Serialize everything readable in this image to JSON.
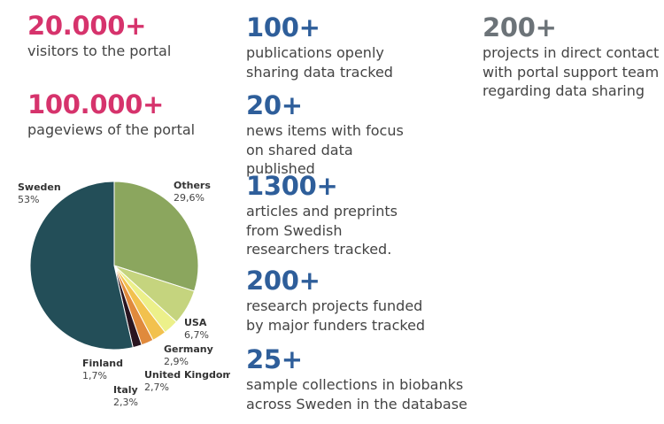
{
  "stats": {
    "visitors": {
      "number": "20.000+",
      "text": "visitors to the portal",
      "color": "#d6336c"
    },
    "pageviews": {
      "number": "100.000+",
      "text": "pageviews of the portal",
      "color": "#d6336c"
    },
    "publications": {
      "number": "100+",
      "text": "publications openly sharing data tracked",
      "color": "#2e5e9a"
    },
    "news": {
      "number": "20+",
      "text": "news items with focus on shared data published",
      "color": "#2e5e9a"
    },
    "articles": {
      "number": "1300+",
      "text": "articles and preprints from Swedish researchers tracked.",
      "color": "#2e5e9a"
    },
    "projects_funded": {
      "number": "200+",
      "text": "research projects funded by major funders tracked",
      "color": "#2e5e9a"
    },
    "collections": {
      "number": "25+",
      "text": "sample collections in biobanks across Sweden in the database",
      "color": "#2e5e9a"
    },
    "projects_contact": {
      "number": "200+",
      "text": "projects in direct contact with portal support team regarding data sharing",
      "color": "#6c7378"
    }
  },
  "chart_data": {
    "type": "pie",
    "slices": [
      {
        "name": "Sweden",
        "label": "53%",
        "value": 53.0,
        "color": "#234e58"
      },
      {
        "name": "Others",
        "label": "29,6%",
        "value": 29.6,
        "color": "#8ba65e"
      },
      {
        "name": "USA",
        "label": "6,7%",
        "value": 6.7,
        "color": "#c5d47e"
      },
      {
        "name": "Germany",
        "label": "2,9%",
        "value": 2.9,
        "color": "#ecf08a"
      },
      {
        "name": "United Kingdom",
        "label": "2,7%",
        "value": 2.7,
        "color": "#f2c14e"
      },
      {
        "name": "Italy",
        "label": "2,3%",
        "value": 2.3,
        "color": "#e08a3c"
      },
      {
        "name": "Finland",
        "label": "1,7%",
        "value": 1.7,
        "color": "#2a1520"
      }
    ]
  }
}
